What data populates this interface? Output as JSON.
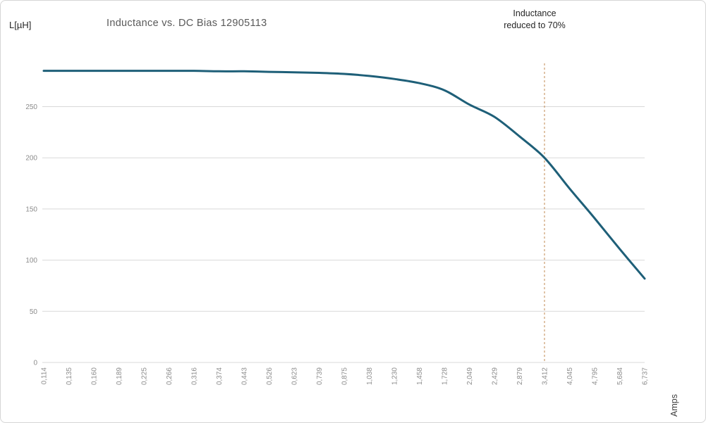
{
  "chart_data": {
    "type": "line",
    "title": "Inductance vs. DC Bias 12905113",
    "y_axis_label": "L[µH]",
    "x_axis_label": "Amps",
    "categories": [
      "0,114",
      "0,135",
      "0,160",
      "0,189",
      "0,225",
      "0,266",
      "0,316",
      "0,374",
      "0,443",
      "0,526",
      "0,623",
      "0,739",
      "0,875",
      "1,038",
      "1,230",
      "1,458",
      "1,728",
      "2,049",
      "2,429",
      "2,879",
      "3,412",
      "4,045",
      "4,795",
      "5,684",
      "6,737"
    ],
    "values": [
      285,
      285,
      285,
      285,
      285,
      285,
      285,
      284.5,
      284.5,
      284,
      283.5,
      283,
      282,
      280,
      277,
      273,
      266,
      252,
      240,
      221,
      200,
      170,
      141,
      111,
      82
    ],
    "y_ticks": [
      0,
      50,
      100,
      150,
      200,
      250
    ],
    "ylim": [
      0,
      290
    ],
    "grid": "horizontal-only",
    "legend": "none",
    "series_color": "#1e5f78",
    "annotation": {
      "lines": [
        "Inductance",
        "reduced to 70%"
      ],
      "x_category": "3,412",
      "line_style": "dashed",
      "line_color": "#c18a52"
    },
    "colors": {
      "title": "#595959",
      "tick_labels": "#8c8c8c",
      "axis_titles": "#262626",
      "gridlines": "#d9d9d9"
    }
  }
}
